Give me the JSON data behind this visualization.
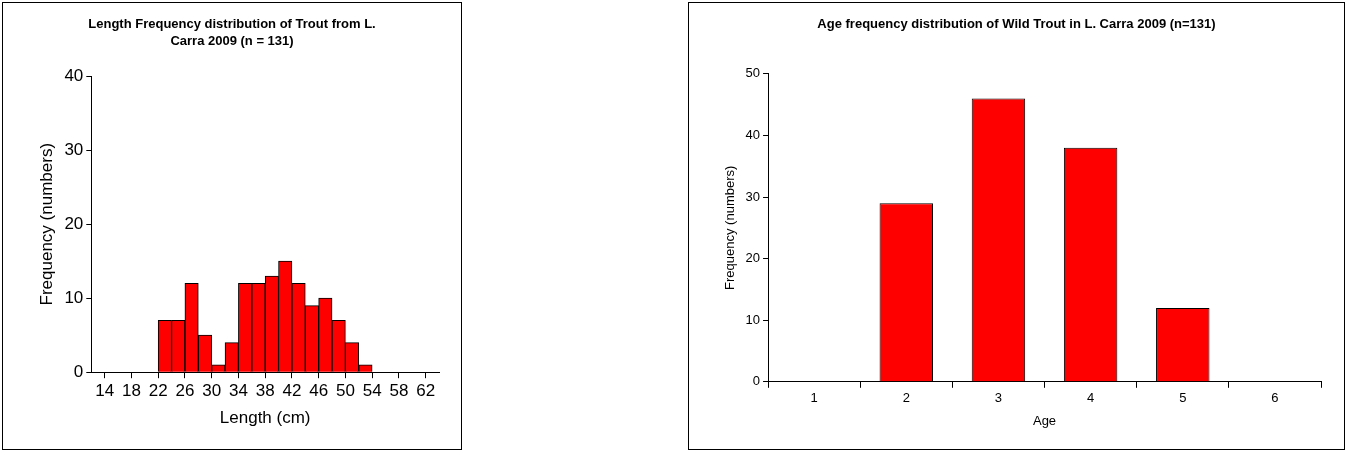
{
  "chart_data": [
    {
      "type": "histogram",
      "title": "Length Frequency distribution of Trout from L. Carra 2009 (n = 131)",
      "xlabel": "Length (cm)",
      "ylabel": "Frequency (numbers)",
      "bins": [
        22,
        24,
        26,
        28,
        30,
        32,
        34,
        36,
        38,
        40,
        42,
        44,
        46,
        48,
        50,
        52,
        54
      ],
      "values": [
        7,
        7,
        12,
        5,
        1,
        4,
        12,
        12,
        13,
        15,
        12,
        9,
        10,
        7,
        4,
        1
      ],
      "color": "#ff0000",
      "xlim": [
        12,
        64
      ],
      "xticks": [
        14,
        18,
        22,
        26,
        30,
        34,
        38,
        42,
        46,
        50,
        54,
        58,
        62
      ],
      "ylim": [
        0,
        40
      ],
      "yticks": [
        0,
        10,
        20,
        30,
        40
      ],
      "grid": false
    },
    {
      "type": "bar",
      "title": "Age frequency distribution of Wild Trout in L. Carra 2009 (n=131)",
      "xlabel": "Age",
      "ylabel": "Frequency (numbers)",
      "categories": [
        "1",
        "2",
        "3",
        "4",
        "5",
        "6"
      ],
      "values": [
        0,
        29,
        46,
        38,
        12,
        0
      ],
      "color": "#ff0000",
      "ylim": [
        0,
        50
      ],
      "yticks": [
        0,
        10,
        20,
        30,
        40,
        50
      ],
      "grid": false
    }
  ]
}
